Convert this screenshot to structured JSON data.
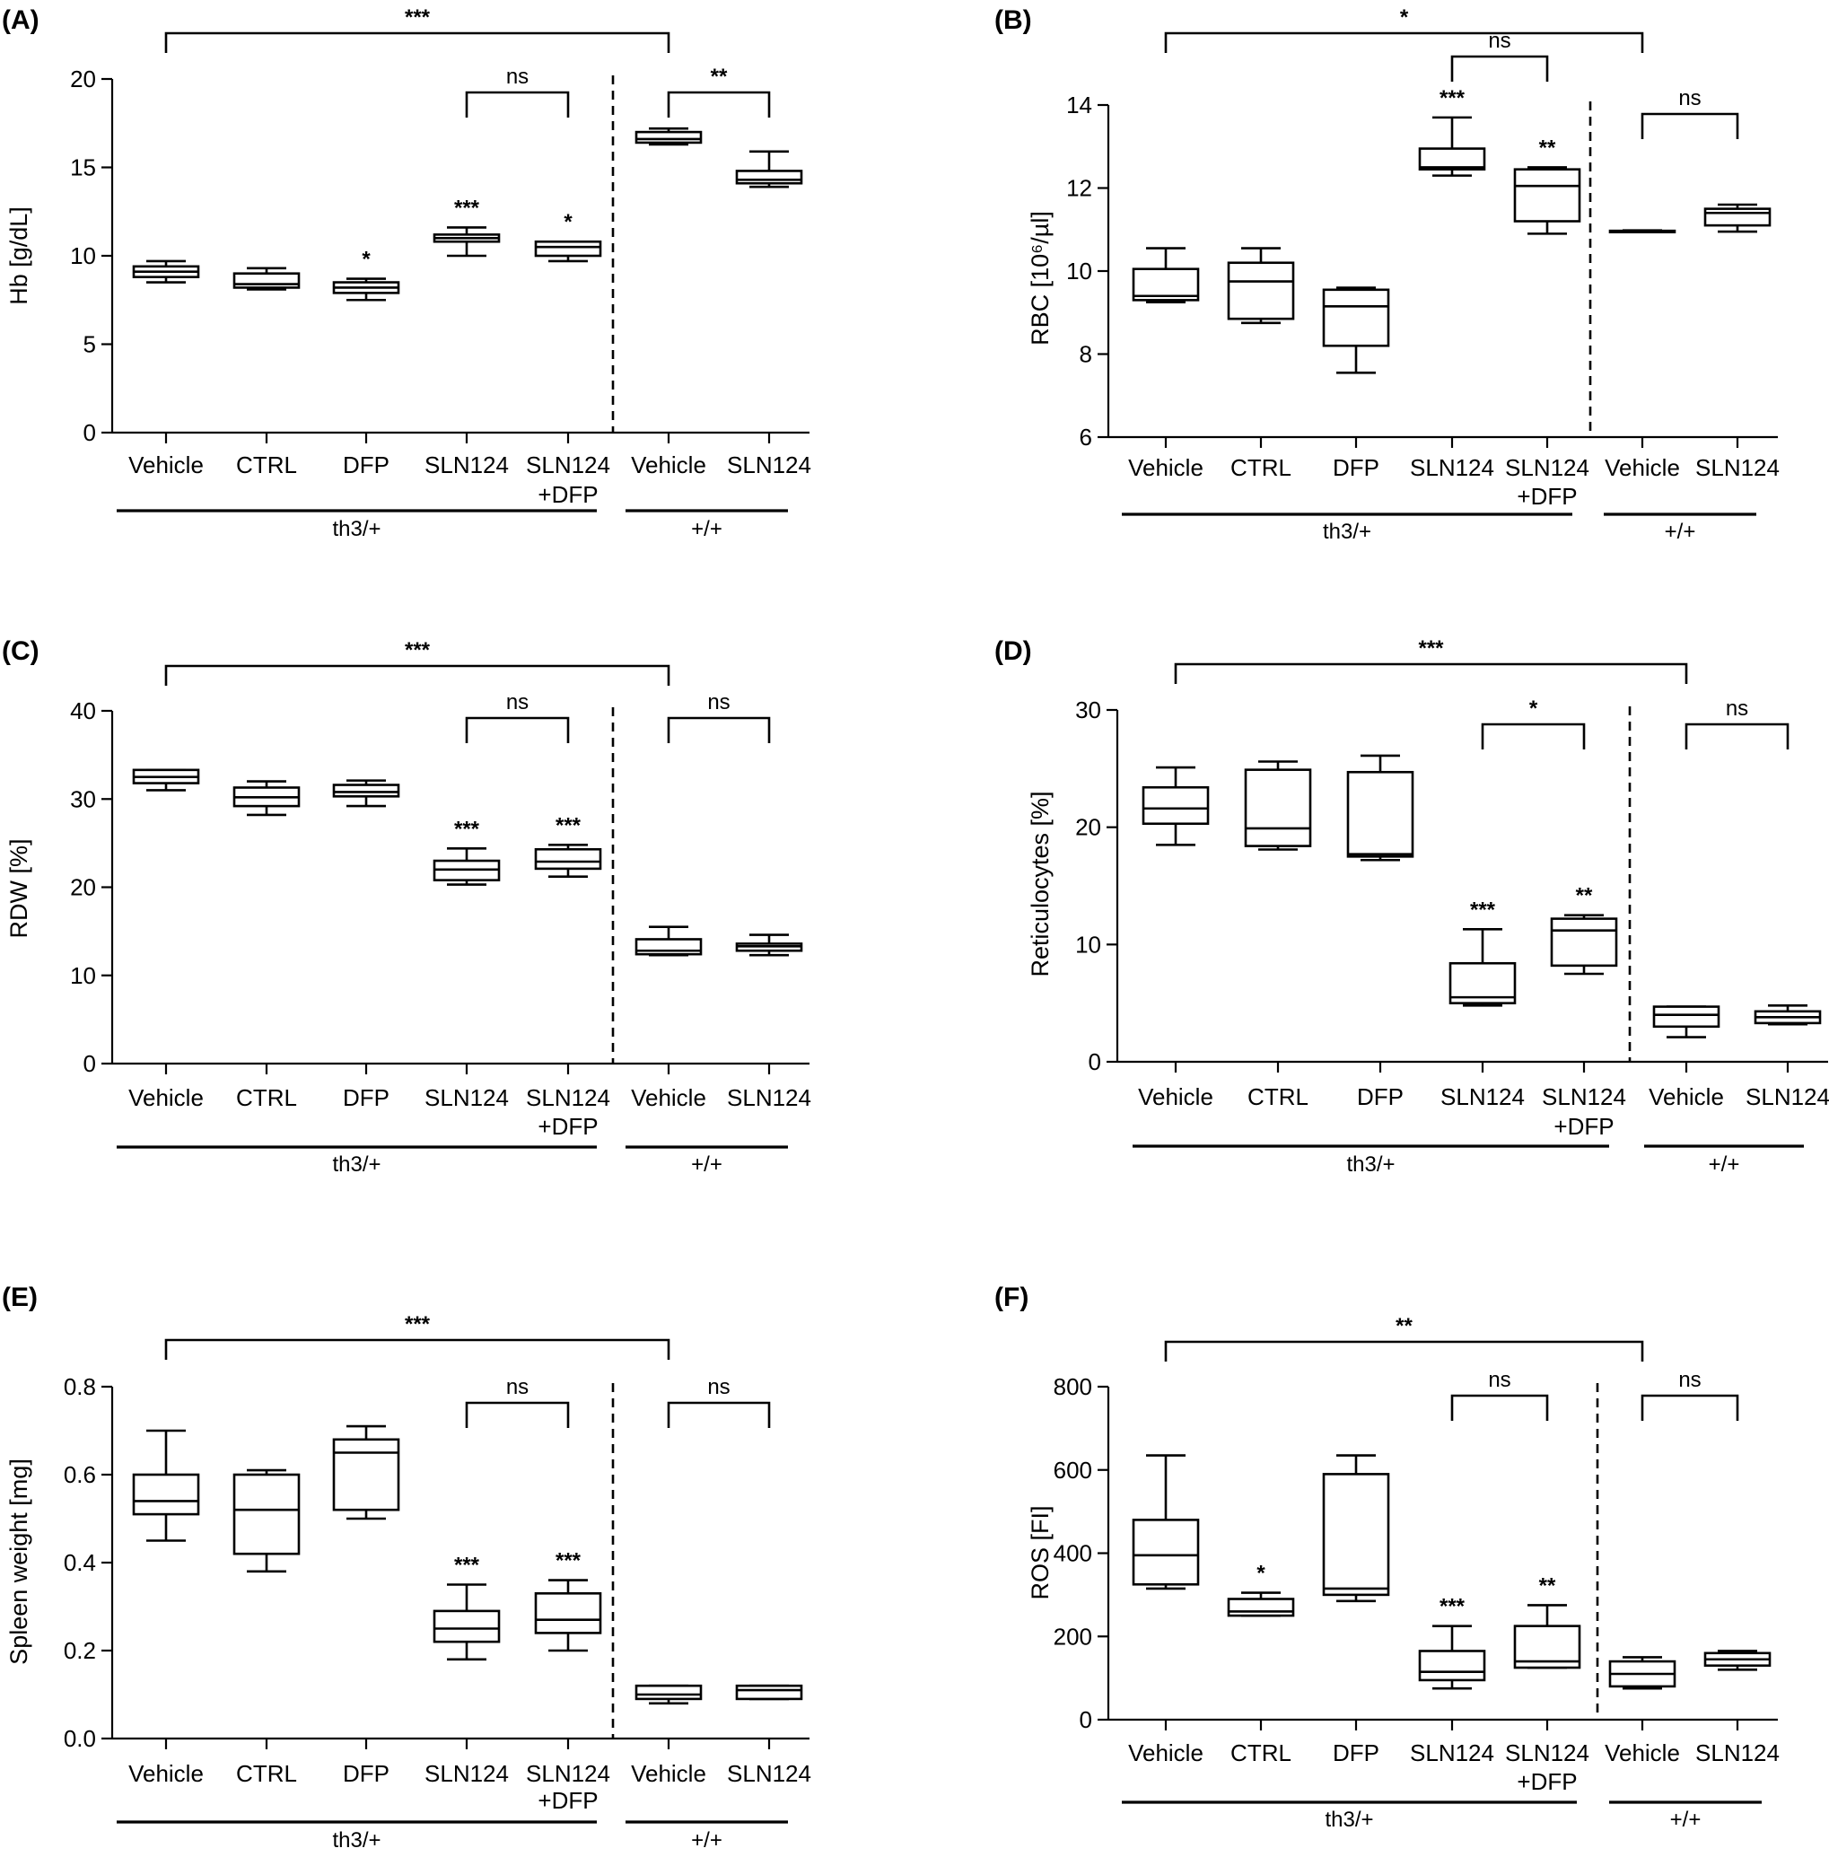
{
  "chart_data": [
    {
      "panel_label": "(A)",
      "type": "box",
      "ylabel": "Hb [g/dL]",
      "ylim": [
        0,
        20
      ],
      "yticks": [
        0,
        5,
        10,
        15,
        20
      ],
      "categories": [
        "Vehicle",
        "CTRL",
        "DFP",
        "SLN124",
        "SLN124\n+DFP",
        "Vehicle",
        "SLN124"
      ],
      "groups": [
        {
          "label": "th3/+",
          "from": 0,
          "to": 4
        },
        {
          "label": "+/+",
          "from": 5,
          "to": 6
        }
      ],
      "boxes": [
        {
          "min": 8.5,
          "q1": 8.8,
          "median": 9.1,
          "q3": 9.4,
          "max": 9.7,
          "sig": ""
        },
        {
          "min": 8.1,
          "q1": 8.2,
          "median": 8.4,
          "q3": 9.0,
          "max": 9.3,
          "sig": ""
        },
        {
          "min": 7.5,
          "q1": 7.9,
          "median": 8.2,
          "q3": 8.5,
          "max": 8.7,
          "sig": "*"
        },
        {
          "min": 10.0,
          "q1": 10.8,
          "median": 11.0,
          "q3": 11.2,
          "max": 11.6,
          "sig": "***"
        },
        {
          "min": 9.7,
          "q1": 10.0,
          "median": 10.5,
          "q3": 10.8,
          "max": 10.8,
          "sig": "*"
        },
        {
          "min": 16.3,
          "q1": 16.4,
          "median": 16.6,
          "q3": 17.0,
          "max": 17.2,
          "sig": ""
        },
        {
          "min": 13.9,
          "q1": 14.1,
          "median": 14.3,
          "q3": 14.8,
          "max": 15.9,
          "sig": ""
        }
      ],
      "comparisons": [
        {
          "from": 0,
          "to": 5,
          "label": "***",
          "level": "top"
        },
        {
          "from": 3,
          "to": 4,
          "label": "ns",
          "level": "mid"
        },
        {
          "from": 5,
          "to": 6,
          "label": "**",
          "level": "mid"
        }
      ]
    },
    {
      "panel_label": "(B)",
      "type": "box",
      "ylabel": "RBC [10⁶/µl]",
      "ylim": [
        6,
        14
      ],
      "yticks": [
        6,
        8,
        10,
        12,
        14
      ],
      "categories": [
        "Vehicle",
        "CTRL",
        "DFP",
        "SLN124",
        "SLN124\n+DFP",
        "Vehicle",
        "SLN124"
      ],
      "groups": [
        {
          "label": "th3/+",
          "from": 0,
          "to": 4
        },
        {
          "label": "+/+",
          "from": 5,
          "to": 6
        }
      ],
      "boxes": [
        {
          "min": 9.25,
          "q1": 9.3,
          "median": 9.4,
          "q3": 10.05,
          "max": 10.55,
          "sig": ""
        },
        {
          "min": 8.75,
          "q1": 8.85,
          "median": 9.75,
          "q3": 10.2,
          "max": 10.55,
          "sig": ""
        },
        {
          "min": 7.55,
          "q1": 8.2,
          "median": 9.15,
          "q3": 9.55,
          "max": 9.6,
          "sig": ""
        },
        {
          "min": 12.3,
          "q1": 12.45,
          "median": 12.5,
          "q3": 12.95,
          "max": 13.7,
          "sig": "***"
        },
        {
          "min": 10.9,
          "q1": 11.2,
          "median": 12.05,
          "q3": 12.45,
          "max": 12.5,
          "sig": "**"
        },
        {
          "min": 10.95,
          "q1": 10.95,
          "median": 10.95,
          "q3": 10.97,
          "max": 10.98,
          "sig": ""
        },
        {
          "min": 10.95,
          "q1": 11.1,
          "median": 11.4,
          "q3": 11.5,
          "max": 11.6,
          "sig": ""
        }
      ],
      "comparisons": [
        {
          "from": 0,
          "to": 5,
          "label": "*",
          "level": "top"
        },
        {
          "from": 3,
          "to": 4,
          "label": "ns",
          "level": "mid"
        },
        {
          "from": 5,
          "to": 6,
          "label": "ns",
          "level": "low"
        }
      ]
    },
    {
      "panel_label": "(C)",
      "type": "box",
      "ylabel": "RDW [%]",
      "ylim": [
        0,
        40
      ],
      "yticks": [
        0,
        10,
        20,
        30,
        40
      ],
      "categories": [
        "Vehicle",
        "CTRL",
        "DFP",
        "SLN124",
        "SLN124\n+DFP",
        "Vehicle",
        "SLN124"
      ],
      "groups": [
        {
          "label": "th3/+",
          "from": 0,
          "to": 4
        },
        {
          "label": "+/+",
          "from": 5,
          "to": 6
        }
      ],
      "boxes": [
        {
          "min": 31.0,
          "q1": 31.8,
          "median": 32.5,
          "q3": 33.3,
          "max": 33.3,
          "sig": ""
        },
        {
          "min": 28.2,
          "q1": 29.2,
          "median": 30.2,
          "q3": 31.3,
          "max": 32.0,
          "sig": ""
        },
        {
          "min": 29.2,
          "q1": 30.3,
          "median": 30.8,
          "q3": 31.6,
          "max": 32.1,
          "sig": ""
        },
        {
          "min": 20.3,
          "q1": 20.8,
          "median": 22.0,
          "q3": 23.0,
          "max": 24.4,
          "sig": "***"
        },
        {
          "min": 21.2,
          "q1": 22.1,
          "median": 22.9,
          "q3": 24.3,
          "max": 24.8,
          "sig": "***"
        },
        {
          "min": 12.3,
          "q1": 12.4,
          "median": 12.8,
          "q3": 14.1,
          "max": 15.5,
          "sig": ""
        },
        {
          "min": 12.3,
          "q1": 12.8,
          "median": 13.3,
          "q3": 13.6,
          "max": 14.6,
          "sig": ""
        }
      ],
      "comparisons": [
        {
          "from": 0,
          "to": 5,
          "label": "***",
          "level": "top"
        },
        {
          "from": 3,
          "to": 4,
          "label": "ns",
          "level": "mid"
        },
        {
          "from": 5,
          "to": 6,
          "label": "ns",
          "level": "mid"
        }
      ]
    },
    {
      "panel_label": "(D)",
      "type": "box",
      "ylabel": "Reticulocytes [%]",
      "ylim": [
        0,
        30
      ],
      "yticks": [
        0,
        10,
        20,
        30
      ],
      "categories": [
        "Vehicle",
        "CTRL",
        "DFP",
        "SLN124",
        "SLN124\n+DFP",
        "Vehicle",
        "SLN124"
      ],
      "groups": [
        {
          "label": "th3/+",
          "from": 0,
          "to": 4
        },
        {
          "label": "+/+",
          "from": 5,
          "to": 6
        }
      ],
      "boxes": [
        {
          "min": 18.5,
          "q1": 20.3,
          "median": 21.6,
          "q3": 23.4,
          "max": 25.1,
          "sig": ""
        },
        {
          "min": 18.1,
          "q1": 18.4,
          "median": 19.9,
          "q3": 24.9,
          "max": 25.6,
          "sig": ""
        },
        {
          "min": 17.2,
          "q1": 17.5,
          "median": 17.7,
          "q3": 24.7,
          "max": 26.1,
          "sig": ""
        },
        {
          "min": 4.8,
          "q1": 5.0,
          "median": 5.5,
          "q3": 8.4,
          "max": 11.3,
          "sig": "***"
        },
        {
          "min": 7.5,
          "q1": 8.2,
          "median": 11.2,
          "q3": 12.2,
          "max": 12.5,
          "sig": "**"
        },
        {
          "min": 2.1,
          "q1": 3.0,
          "median": 4.0,
          "q3": 4.7,
          "max": 4.7,
          "sig": ""
        },
        {
          "min": 3.2,
          "q1": 3.3,
          "median": 3.8,
          "q3": 4.3,
          "max": 4.8,
          "sig": ""
        }
      ],
      "comparisons": [
        {
          "from": 0,
          "to": 5,
          "label": "***",
          "level": "top"
        },
        {
          "from": 3,
          "to": 4,
          "label": "*",
          "level": "mid"
        },
        {
          "from": 5,
          "to": 6,
          "label": "ns",
          "level": "mid"
        }
      ]
    },
    {
      "panel_label": "(E)",
      "type": "box",
      "ylabel": "Spleen weight  [mg]",
      "ylim": [
        0,
        0.8
      ],
      "yticks": [
        0.0,
        0.2,
        0.4,
        0.6,
        0.8
      ],
      "ytick_labels": [
        "0.0",
        "0.2",
        "0.4",
        "0.6",
        "0.8"
      ],
      "categories": [
        "Vehicle",
        "CTRL",
        "DFP",
        "SLN124",
        "SLN124\n+DFP",
        "Vehicle",
        "SLN124"
      ],
      "groups": [
        {
          "label": "th3/+",
          "from": 0,
          "to": 4
        },
        {
          "label": "+/+",
          "from": 5,
          "to": 6
        }
      ],
      "boxes": [
        {
          "min": 0.45,
          "q1": 0.51,
          "median": 0.54,
          "q3": 0.6,
          "max": 0.7,
          "sig": ""
        },
        {
          "min": 0.38,
          "q1": 0.42,
          "median": 0.52,
          "q3": 0.6,
          "max": 0.61,
          "sig": ""
        },
        {
          "min": 0.5,
          "q1": 0.52,
          "median": 0.65,
          "q3": 0.68,
          "max": 0.71,
          "sig": ""
        },
        {
          "min": 0.18,
          "q1": 0.22,
          "median": 0.25,
          "q3": 0.29,
          "max": 0.35,
          "sig": "***"
        },
        {
          "min": 0.2,
          "q1": 0.24,
          "median": 0.27,
          "q3": 0.33,
          "max": 0.36,
          "sig": "***"
        },
        {
          "min": 0.08,
          "q1": 0.09,
          "median": 0.1,
          "q3": 0.12,
          "max": 0.12,
          "sig": ""
        },
        {
          "min": 0.09,
          "q1": 0.09,
          "median": 0.11,
          "q3": 0.12,
          "max": 0.12,
          "sig": ""
        }
      ],
      "comparisons": [
        {
          "from": 0,
          "to": 5,
          "label": "***",
          "level": "top"
        },
        {
          "from": 3,
          "to": 4,
          "label": "ns",
          "level": "mid"
        },
        {
          "from": 5,
          "to": 6,
          "label": "ns",
          "level": "mid"
        }
      ]
    },
    {
      "panel_label": "(F)",
      "type": "box",
      "ylabel": "ROS [FI]",
      "ylim": [
        0,
        800
      ],
      "yticks": [
        0,
        200,
        400,
        600,
        800
      ],
      "categories": [
        "Vehicle",
        "CTRL",
        "DFP",
        "SLN124",
        "SLN124\n+DFP",
        "Vehicle",
        "SLN124"
      ],
      "groups": [
        {
          "label": "th3/+",
          "from": 0,
          "to": 4
        },
        {
          "label": "+/+",
          "from": 5,
          "to": 6
        }
      ],
      "boxes": [
        {
          "min": 315,
          "q1": 325,
          "median": 395,
          "q3": 480,
          "max": 635,
          "sig": ""
        },
        {
          "min": 250,
          "q1": 250,
          "median": 260,
          "q3": 290,
          "max": 305,
          "sig": "*"
        },
        {
          "min": 285,
          "q1": 300,
          "median": 315,
          "q3": 590,
          "max": 635,
          "sig": ""
        },
        {
          "min": 75,
          "q1": 95,
          "median": 115,
          "q3": 165,
          "max": 225,
          "sig": "***"
        },
        {
          "min": 125,
          "q1": 125,
          "median": 140,
          "q3": 225,
          "max": 275,
          "sig": "**"
        },
        {
          "min": 75,
          "q1": 80,
          "median": 110,
          "q3": 140,
          "max": 150,
          "sig": ""
        },
        {
          "min": 120,
          "q1": 130,
          "median": 145,
          "q3": 160,
          "max": 165,
          "sig": ""
        }
      ],
      "comparisons": [
        {
          "from": 0,
          "to": 5,
          "label": "**",
          "level": "top"
        },
        {
          "from": 3,
          "to": 4,
          "label": "ns",
          "level": "mid"
        },
        {
          "from": 5,
          "to": 6,
          "label": "ns",
          "level": "mid"
        }
      ]
    }
  ]
}
